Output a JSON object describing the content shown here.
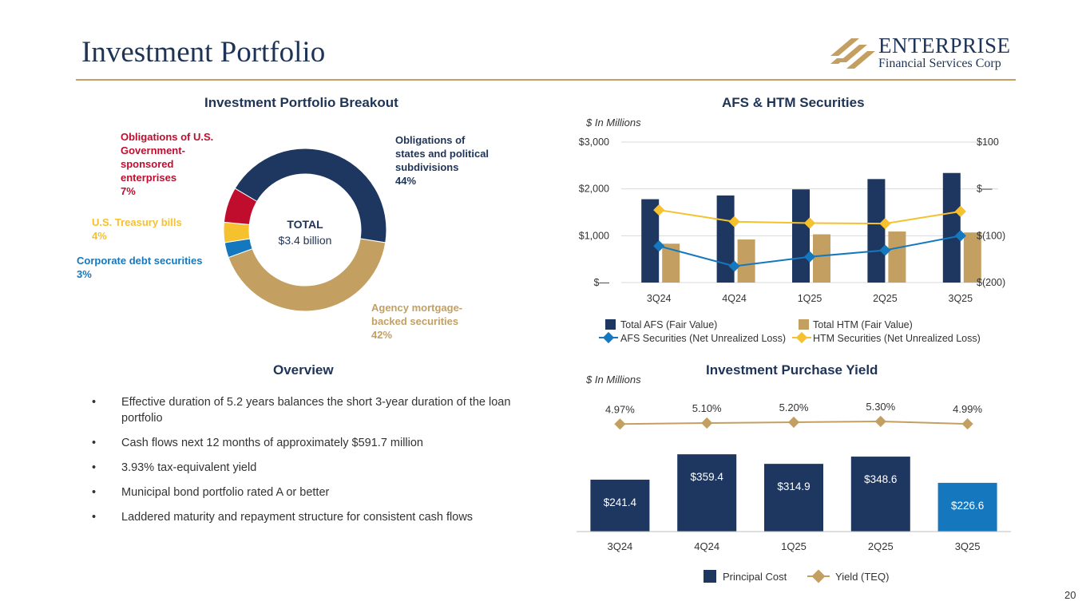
{
  "header": {
    "title": "Investment Portfolio",
    "logo_name": "ENTERPRISE",
    "logo_subtitle": "Financial Services Corp",
    "rule_color": "#c5a063"
  },
  "page_number": "20",
  "overview": {
    "title": "Overview",
    "bullet_glyph": "•",
    "items": [
      "Effective duration of 5.2 years balances the short 3-year duration of the loan portfolio",
      "Cash flows next 12 months of approximately $591.7 million",
      "3.93% tax-equivalent yield",
      "Municipal bond portfolio rated A or better",
      "Laddered maturity and repayment structure for consistent cash flows"
    ]
  },
  "chart_data": [
    {
      "id": "breakout",
      "type": "pie",
      "title": "Investment Portfolio Breakout",
      "center_label": "TOTAL",
      "center_value": "$3.4 billion",
      "slices": [
        {
          "line1": "Obligations of",
          "line2": "states and political",
          "line3": "subdivisions",
          "pct_label": "44%",
          "value": 44,
          "color": "#1e3760"
        },
        {
          "line1": "Agency mortgage-",
          "line2": "backed securities",
          "line3": "",
          "pct_label": "42%",
          "value": 42,
          "color": "#c3a061"
        },
        {
          "line1": "Corporate debt securities",
          "line2": "",
          "line3": "",
          "pct_label": "3%",
          "value": 3,
          "color": "#1578be"
        },
        {
          "line1": "U.S. Treasury bills",
          "line2": "",
          "line3": "",
          "pct_label": "4%",
          "value": 4,
          "color": "#f5c12f"
        },
        {
          "line1": "Obligations of U.S.",
          "line2": "Government-",
          "line3": "sponsored",
          "line4": "enterprises",
          "pct_label": "7%",
          "value": 7,
          "color": "#c00d2e"
        }
      ]
    },
    {
      "id": "afs_htm",
      "type": "bar",
      "title": "AFS & HTM Securities",
      "unit": "$ In Millions",
      "categories": [
        "3Q24",
        "4Q24",
        "1Q25",
        "2Q25",
        "3Q25"
      ],
      "ylim": [
        0,
        3000
      ],
      "y_ticks": [
        0,
        1000,
        2000,
        3000
      ],
      "y_tick_labels": [
        "$—",
        "$1,000",
        "$2,000",
        "$3,000"
      ],
      "y2lim": [
        -200,
        100
      ],
      "y2_ticks": [
        -200,
        -100,
        0,
        100
      ],
      "y2_tick_labels": [
        "$(200)",
        "$(100)",
        "$—",
        "$100"
      ],
      "grid": true,
      "series": [
        {
          "name": "Total AFS (Fair Value)",
          "kind": "bar",
          "axis": "left",
          "color": "#1e3760",
          "values": [
            1780,
            1860,
            1990,
            2210,
            2340
          ]
        },
        {
          "name": "Total HTM (Fair Value)",
          "kind": "bar",
          "axis": "left",
          "color": "#c3a061",
          "values": [
            830,
            920,
            1030,
            1090,
            1070
          ]
        },
        {
          "name": "AFS Securities (Net Unrealized Loss)",
          "kind": "line",
          "axis": "right",
          "color": "#1578be",
          "values": [
            -122,
            -165,
            -145,
            -131,
            -100
          ]
        },
        {
          "name": "HTM Securities (Net Unrealized Loss)",
          "kind": "line",
          "axis": "right",
          "color": "#f5c12f",
          "values": [
            -45,
            -70,
            -73,
            -74,
            -48
          ]
        }
      ]
    },
    {
      "id": "purchase_yield",
      "type": "bar",
      "title": "Investment Purchase Yield",
      "unit": "$ In Millions",
      "categories": [
        "3Q24",
        "4Q24",
        "1Q25",
        "2Q25",
        "3Q25"
      ],
      "ylim": [
        0,
        400
      ],
      "grid": false,
      "series": [
        {
          "name": "Principal Cost",
          "kind": "bar",
          "color": "#1e3760",
          "last_color": "#1578be",
          "values": [
            241.4,
            359.4,
            314.9,
            348.6,
            226.6
          ],
          "labels": [
            "$241.4",
            "$359.4",
            "$314.9",
            "$348.6",
            "$226.6"
          ]
        },
        {
          "name": "Yield (TEQ)",
          "kind": "line",
          "color": "#c3a061",
          "values": [
            4.97,
            5.1,
            5.2,
            5.3,
            4.99
          ],
          "labels": [
            "4.97%",
            "5.10%",
            "5.20%",
            "5.30%",
            "4.99%"
          ]
        }
      ]
    }
  ]
}
